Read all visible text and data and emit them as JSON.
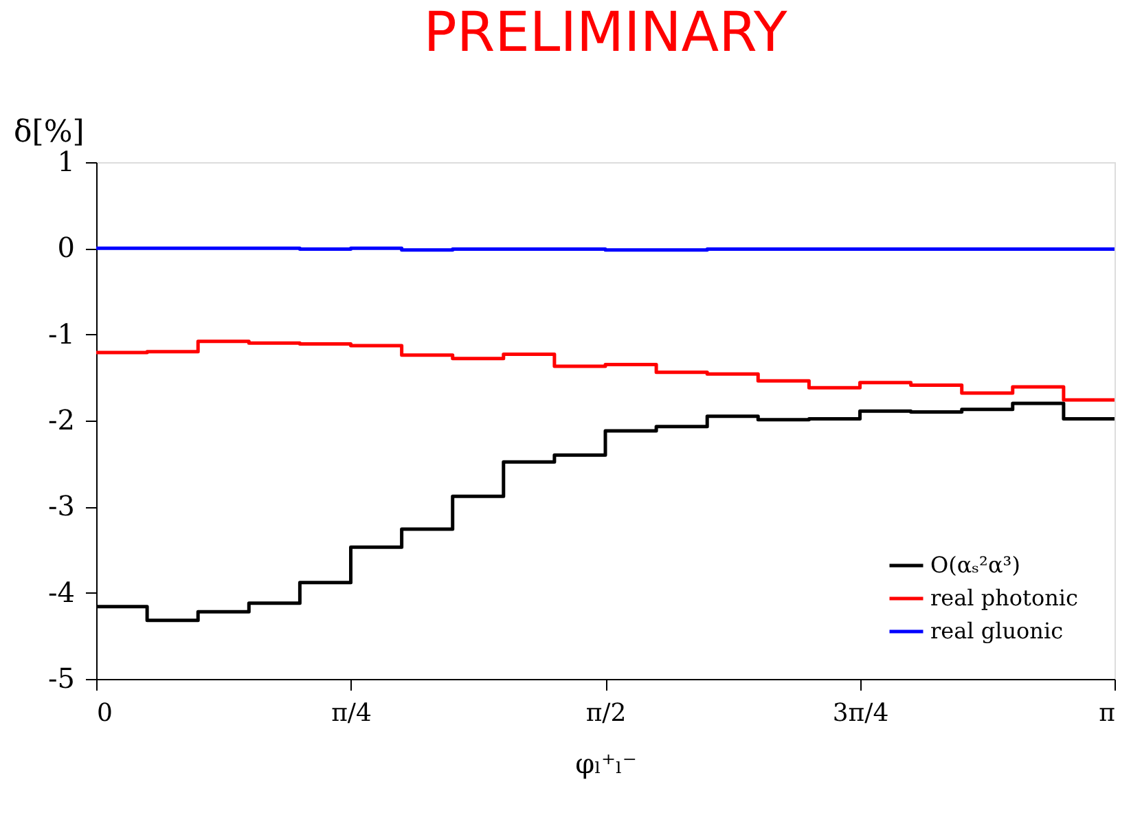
{
  "chart_data": {
    "type": "step",
    "title": "PRELIMINARY",
    "xlabel": "φₗ⁺ₗ⁻",
    "ylabel": "δ[%]",
    "x": [
      0,
      0.1571,
      0.3142,
      0.4712,
      0.6283,
      0.7854,
      0.9425,
      1.0996,
      1.2566,
      1.4137,
      1.5708,
      1.7279,
      1.885,
      2.042,
      2.1991,
      2.3562,
      2.5133,
      2.6704,
      2.8274,
      2.9845,
      3.1416
    ],
    "series": [
      {
        "name": "O(αₛ²α³)",
        "color": "#000000",
        "values": [
          -4.16,
          -4.32,
          -4.22,
          -4.12,
          -3.88,
          -3.47,
          -3.26,
          -2.88,
          -2.48,
          -2.4,
          -2.12,
          -2.07,
          -1.95,
          -1.99,
          -1.98,
          -1.89,
          -1.9,
          -1.87,
          -1.8,
          -1.98,
          -1.98
        ]
      },
      {
        "name": "real photonic",
        "color": "#ff0000",
        "values": [
          -1.21,
          -1.2,
          -1.08,
          -1.1,
          -1.11,
          -1.13,
          -1.24,
          -1.28,
          -1.23,
          -1.37,
          -1.35,
          -1.44,
          -1.46,
          -1.54,
          -1.62,
          -1.56,
          -1.59,
          -1.68,
          -1.61,
          -1.76,
          -1.76
        ]
      },
      {
        "name": "real gluonic",
        "color": "#0000ff",
        "values": [
          0,
          0,
          0,
          0,
          -0.01,
          0,
          -0.02,
          -0.01,
          -0.01,
          -0.01,
          -0.02,
          -0.02,
          -0.01,
          -0.01,
          -0.01,
          -0.01,
          -0.01,
          -0.01,
          -0.01,
          -0.01,
          -0.01
        ]
      }
    ],
    "xlim": [
      0,
      3.1416
    ],
    "ylim": [
      -5,
      1
    ],
    "xticks": [
      0,
      {
        "value": 0.7854,
        "label": "π/4"
      },
      {
        "value": 1.5708,
        "label": "π/2"
      },
      {
        "value": 2.3562,
        "label": "3π/4"
      },
      {
        "value": 3.1416,
        "label": "π"
      }
    ],
    "yticks": [
      -5,
      -4,
      -3,
      -2,
      -1,
      0,
      1
    ],
    "grid": false,
    "legend": "bottom right",
    "line_style": "solid",
    "marker": "none"
  }
}
